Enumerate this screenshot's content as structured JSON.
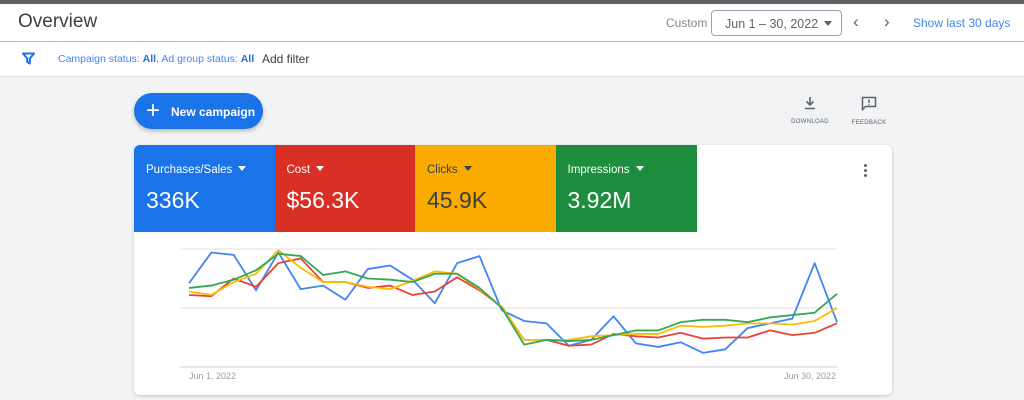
{
  "header": {
    "title": "Overview",
    "range_label": "Custom",
    "date_range": "Jun 1 – 30, 2022",
    "show_last": "Show last 30 days"
  },
  "filter": {
    "campaign_label": "Campaign status: ",
    "campaign_value": "All",
    "ad_group_label": ", Ad group status: ",
    "ad_group_value": "All",
    "add_filter": "Add filter"
  },
  "actions": {
    "new_campaign": "New campaign",
    "download": "DOWNLOAD",
    "feedback": "FEEDBACK"
  },
  "metrics": [
    {
      "name": "Purchases/Sales",
      "value": "336K",
      "color": "#1a73e8",
      "text": "#ffffff"
    },
    {
      "name": "Cost",
      "value": "$56.3K",
      "color": "#d93025",
      "text": "#ffffff"
    },
    {
      "name": "Clicks",
      "value": "45.9K",
      "color": "#f9ab00",
      "text": "#3c4043"
    },
    {
      "name": "Impressions",
      "value": "3.92M",
      "color": "#1e8e3e",
      "text": "#ffffff"
    }
  ],
  "chart_data": {
    "type": "line",
    "x_start_label": "Jun 1, 2022",
    "x_end_label": "Jun 30, 2022",
    "ylim": [
      0,
      100
    ],
    "grid": true,
    "note": "relative index per series (no y labels shown)",
    "series": [
      {
        "name": "Purchases/Sales",
        "color": "#4285f4",
        "values": [
          71,
          97,
          95,
          65,
          97,
          66,
          69,
          57,
          83,
          86,
          74,
          54,
          88,
          94,
          48,
          39,
          37,
          18,
          23,
          43,
          20,
          17,
          21,
          12,
          15,
          33,
          37,
          41,
          88,
          38
        ]
      },
      {
        "name": "Cost",
        "color": "#ea4335",
        "values": [
          61,
          60,
          75,
          68,
          88,
          92,
          72,
          72,
          67,
          69,
          61,
          64,
          76,
          65,
          51,
          23,
          23,
          18,
          19,
          28,
          26,
          25,
          29,
          24,
          25,
          25,
          31,
          27,
          29,
          37
        ]
      },
      {
        "name": "Clicks",
        "color": "#fbbc04",
        "values": [
          64,
          61,
          72,
          79,
          99,
          84,
          72,
          72,
          68,
          66,
          73,
          81,
          79,
          66,
          51,
          23,
          23,
          23,
          26,
          27,
          28,
          28,
          35,
          34,
          35,
          37,
          37,
          36,
          39,
          50
        ]
      },
      {
        "name": "Impressions",
        "color": "#34a853",
        "values": [
          67,
          69,
          74,
          82,
          96,
          94,
          78,
          81,
          75,
          74,
          72,
          79,
          79,
          67,
          50,
          19,
          23,
          22,
          23,
          27,
          31,
          31,
          38,
          40,
          40,
          38,
          42,
          44,
          46,
          62
        ]
      }
    ]
  }
}
